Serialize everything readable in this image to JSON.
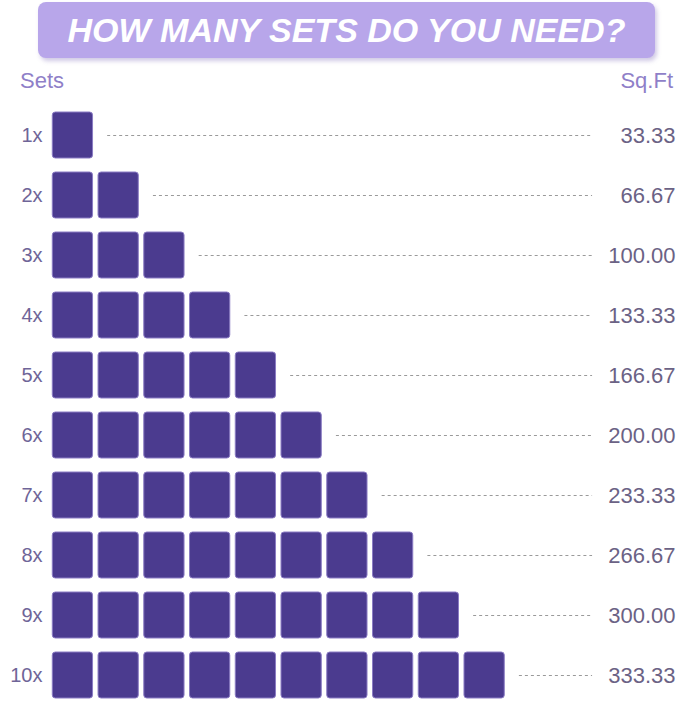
{
  "chart_data": {
    "type": "pictogram",
    "title": "HOW MANY SETS DO YOU NEED?",
    "ylabel": "Sets",
    "xlabel": "Sq.Ft",
    "categories": [
      "1x",
      "2x",
      "3x",
      "4x",
      "5x",
      "6x",
      "7x",
      "8x",
      "9x",
      "10x"
    ],
    "sets": [
      1,
      2,
      3,
      4,
      5,
      6,
      7,
      8,
      9,
      10
    ],
    "values": [
      33.33,
      66.67,
      100,
      133.33,
      166.67,
      200,
      233.33,
      266.67,
      300,
      333.33
    ],
    "value_labels": [
      "33.33",
      "66.67",
      "100.00",
      "133.33",
      "166.67",
      "200.00",
      "233.33",
      "266.67",
      "300.00",
      "333.33"
    ],
    "color": "#4b3b8f",
    "data_labels": true,
    "tick_labels": "y"
  }
}
